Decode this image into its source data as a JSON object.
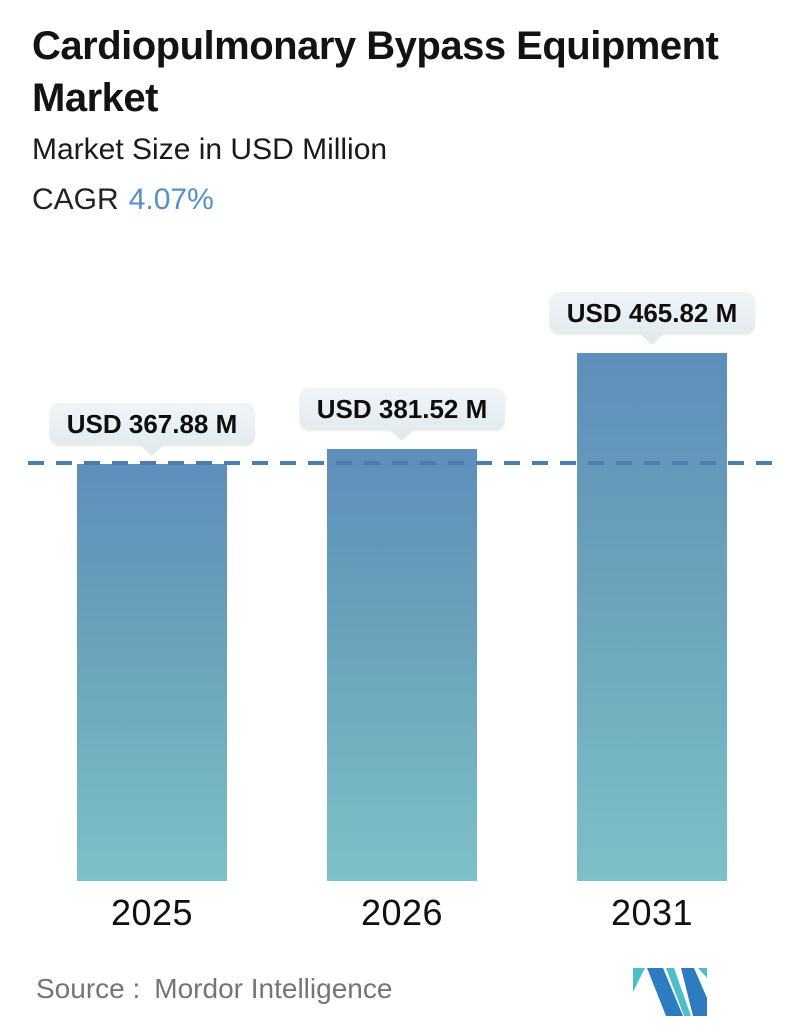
{
  "header": {
    "title": "Cardiopulmonary Bypass Equipment Market",
    "subtitle": "Market Size in USD Million",
    "cagr_label": "CAGR",
    "cagr_value": "4.07%"
  },
  "chart_data": {
    "type": "bar",
    "title": "Cardiopulmonary Bypass Equipment Market",
    "subtitle": "Market Size in USD Million",
    "categories": [
      "2025",
      "2026",
      "2031"
    ],
    "values": [
      367.88,
      381.52,
      465.82
    ],
    "bar_labels": [
      "USD 367.88 M",
      "USD 381.52 M",
      "USD 465.82 M"
    ],
    "unit": "USD Million",
    "cagr_percent": 4.07,
    "reference_line_value": 367.88,
    "reference_line_style": "horizontal dashed",
    "ylim": [
      0,
      466
    ],
    "axis_labels_visible": false,
    "grid": "off",
    "legend": "none"
  },
  "footer": {
    "source_label": "Source :",
    "source_value": "Mordor Intelligence",
    "logo": "mordor-intelligence-logo"
  },
  "colors": {
    "accent_blue": "#5590c6",
    "bar_gradient_top": "#5e8ebb",
    "bar_gradient_bottom": "#7dc1c7",
    "dashed_line": "#4e7cab",
    "callout_bg": "#e8eef2",
    "source_text": "#757575",
    "logo_blue": "#2d7cc0",
    "logo_teal": "#4dbfc8"
  }
}
